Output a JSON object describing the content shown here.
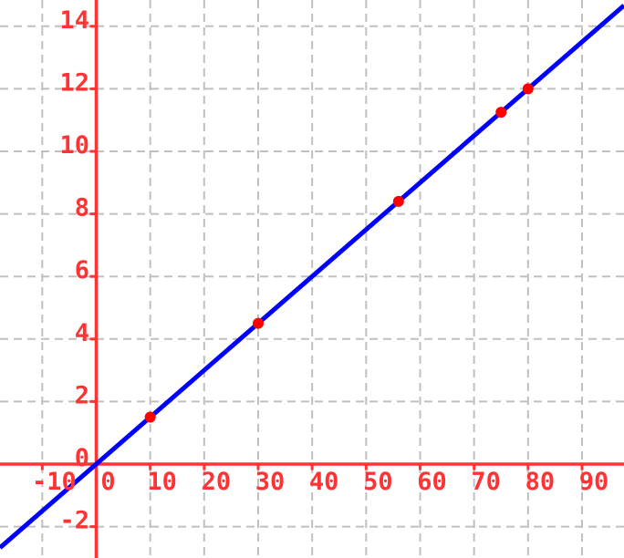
{
  "chart_data": {
    "type": "scatter",
    "title": "",
    "xlabel": "",
    "ylabel": "",
    "x_ticks": [
      -10,
      0,
      10,
      20,
      30,
      40,
      50,
      60,
      70,
      80,
      90
    ],
    "y_ticks": [
      -2,
      0,
      2,
      4,
      6,
      8,
      10,
      12,
      14
    ],
    "x_tick_labels": [
      "-10",
      "0",
      "10",
      "20",
      "30",
      "40",
      "50",
      "60",
      "70",
      "80",
      "90"
    ],
    "y_tick_labels": [
      "-2",
      "0",
      "2",
      "4",
      "6",
      "8",
      "10",
      "12",
      "14"
    ],
    "xlim": [
      -17.8,
      97.8
    ],
    "ylim": [
      -3.0,
      14.8
    ],
    "grid": "dashed",
    "legend": "none",
    "style": {
      "background_color": "#ffffff",
      "grid_color": "#c0c0c0",
      "axis_color": "#ff3333",
      "tick_label_color": "#ff3333",
      "line_color": "#0000ff",
      "point_color": "#ff0000"
    },
    "series": [
      {
        "name": "line",
        "type": "line",
        "color": "#0000ff",
        "slope": 0.15,
        "intercept": 0,
        "equation": "y = 0.15x"
      },
      {
        "name": "points",
        "type": "scatter",
        "color": "#ff0000",
        "points": [
          [
            10,
            1.5
          ],
          [
            30,
            4.5
          ],
          [
            56,
            8.4
          ],
          [
            75,
            11.25
          ],
          [
            80,
            12
          ]
        ]
      }
    ]
  }
}
